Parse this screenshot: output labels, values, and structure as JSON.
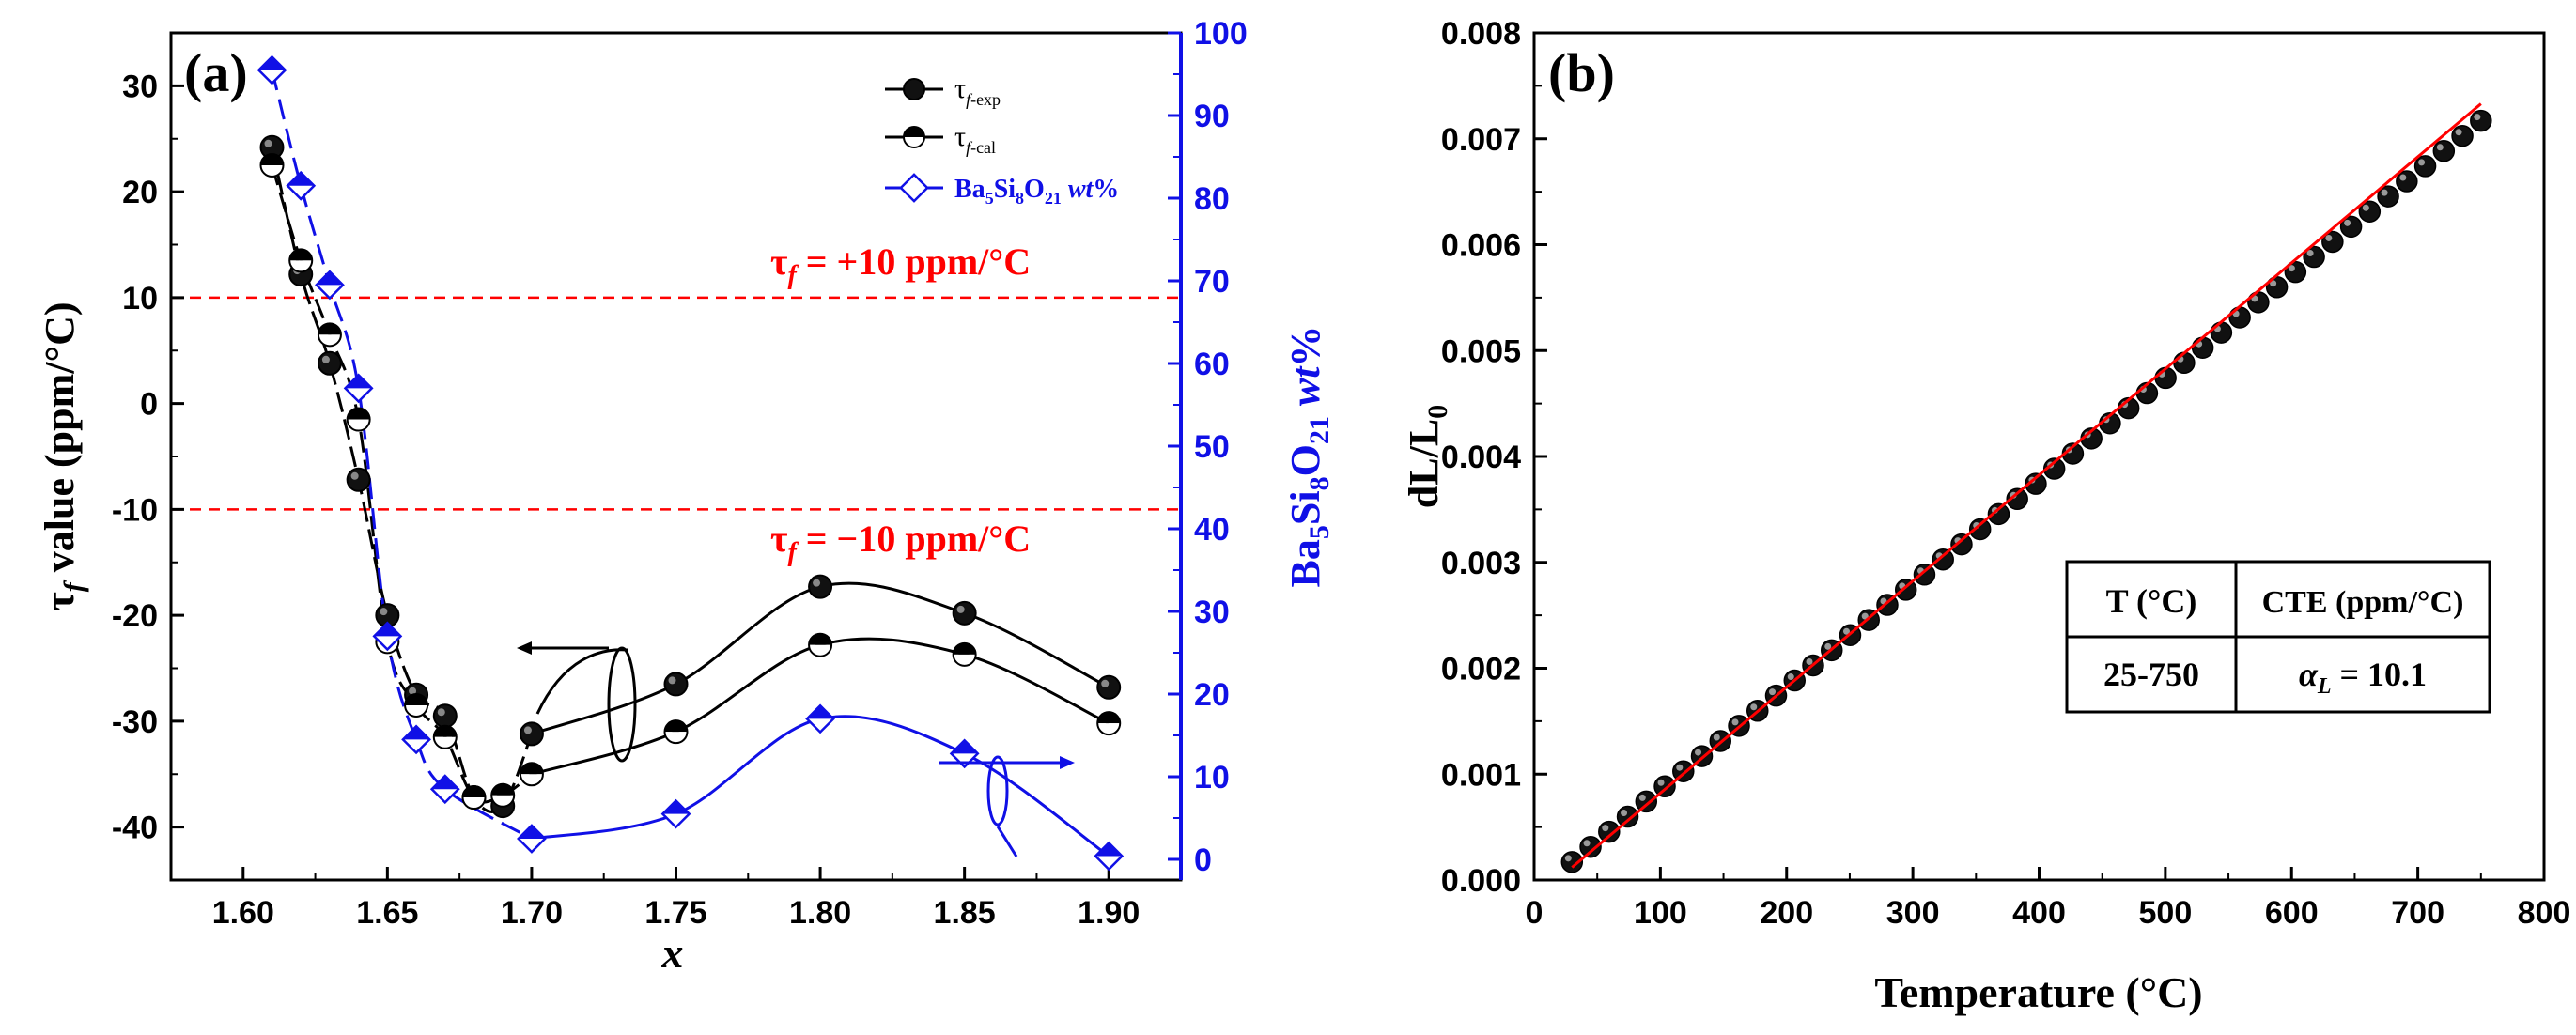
{
  "colors": {
    "black": "#000000",
    "blue": "#1010e6",
    "red": "#ff0000",
    "grid_red": "#ff0000"
  },
  "chart_data": [
    {
      "panel": "(a)",
      "type": "line",
      "xlabel": "x",
      "ylabel_left": "τf value (ppm/°C)",
      "ylabel_right": "Ba5Si8O21 wt%",
      "xlim": [
        1.575,
        1.925
      ],
      "ylim_left": [
        -45,
        35
      ],
      "ylim_right": [
        -2.5,
        100
      ],
      "x_ticks": [
        1.6,
        1.65,
        1.7,
        1.75,
        1.8,
        1.85,
        1.9
      ],
      "x_tick_labels": [
        "1.60",
        "1.65",
        "1.70",
        "1.75",
        "1.80",
        "1.85",
        "1.90"
      ],
      "y_left_ticks": [
        30,
        20,
        10,
        0,
        -10,
        -20,
        -30,
        -40
      ],
      "y_left_tick_labels": [
        "30",
        "20",
        "10",
        "0",
        "-10",
        "-20",
        "-30",
        "-40"
      ],
      "y_right_ticks": [
        0,
        10,
        20,
        30,
        40,
        50,
        60,
        70,
        80,
        90,
        100
      ],
      "y_right_tick_labels": [
        "0",
        "10",
        "20",
        "30",
        "40",
        "50",
        "60",
        "70",
        "80",
        "90",
        "100"
      ],
      "hlines": [
        {
          "y": 10,
          "label": "τf = +10 ppm/°C"
        },
        {
          "y": -10,
          "label": "τf = −10 ppm/°C"
        }
      ],
      "legend": [
        "τf-exp",
        "τf-cal",
        "Ba5Si8O21 wt%"
      ],
      "series": [
        {
          "name": "τf-exp",
          "axis": "left",
          "x": [
            1.61,
            1.62,
            1.63,
            1.64,
            1.65,
            1.66,
            1.67,
            1.68,
            1.69,
            1.7,
            1.75,
            1.8,
            1.85,
            1.9
          ],
          "values": [
            24.2,
            12.2,
            3.8,
            -7.2,
            -20.0,
            -27.5,
            -29.5,
            -37.2,
            -38.0,
            -31.2,
            -26.5,
            -17.3,
            -19.8,
            -26.8
          ]
        },
        {
          "name": "τf-cal",
          "axis": "left",
          "x": [
            1.61,
            1.62,
            1.63,
            1.64,
            1.65,
            1.66,
            1.67,
            1.68,
            1.69,
            1.7,
            1.75,
            1.8,
            1.85,
            1.9
          ],
          "values": [
            22.5,
            13.5,
            6.5,
            -1.5,
            -22.5,
            -28.5,
            -31.5,
            -37.2,
            -37.0,
            -35.0,
            -31.0,
            -22.8,
            -23.7,
            -30.2
          ]
        },
        {
          "name": "Ba5Si8O21 wt%",
          "axis": "right",
          "x": [
            1.61,
            1.62,
            1.63,
            1.64,
            1.65,
            1.66,
            1.67,
            1.7,
            1.75,
            1.8,
            1.85,
            1.9
          ],
          "values": [
            95.5,
            81.5,
            69.5,
            57.0,
            27.0,
            14.5,
            8.5,
            2.5,
            5.5,
            17.0,
            12.8,
            0.4
          ]
        }
      ]
    },
    {
      "panel": "(b)",
      "type": "scatter",
      "xlabel": "Temperature (°C)",
      "ylabel": "dL/L0",
      "xlim": [
        0,
        800
      ],
      "ylim": [
        0,
        0.008
      ],
      "x_ticks": [
        0,
        100,
        200,
        300,
        400,
        500,
        600,
        700,
        800
      ],
      "x_tick_labels": [
        "0",
        "100",
        "200",
        "300",
        "400",
        "500",
        "600",
        "700",
        "800"
      ],
      "y_ticks": [
        0,
        0.001,
        0.002,
        0.003,
        0.004,
        0.005,
        0.006,
        0.007,
        0.008
      ],
      "y_tick_labels": [
        "0.000",
        "0.001",
        "0.002",
        "0.003",
        "0.004",
        "0.005",
        "0.006",
        "0.007",
        "0.008"
      ],
      "scatter": {
        "x_start": 30,
        "x_end": 750,
        "count": 50,
        "y_start": 0.00017,
        "y_end": 0.00717
      },
      "fit_line": {
        "x": [
          30,
          750
        ],
        "y": [
          0.00012,
          0.00733
        ]
      },
      "table": {
        "headers": [
          "T (°C)",
          "CTE (ppm/°C)"
        ],
        "rows": [
          [
            "25-750",
            "αL = 10.1"
          ]
        ]
      }
    }
  ]
}
